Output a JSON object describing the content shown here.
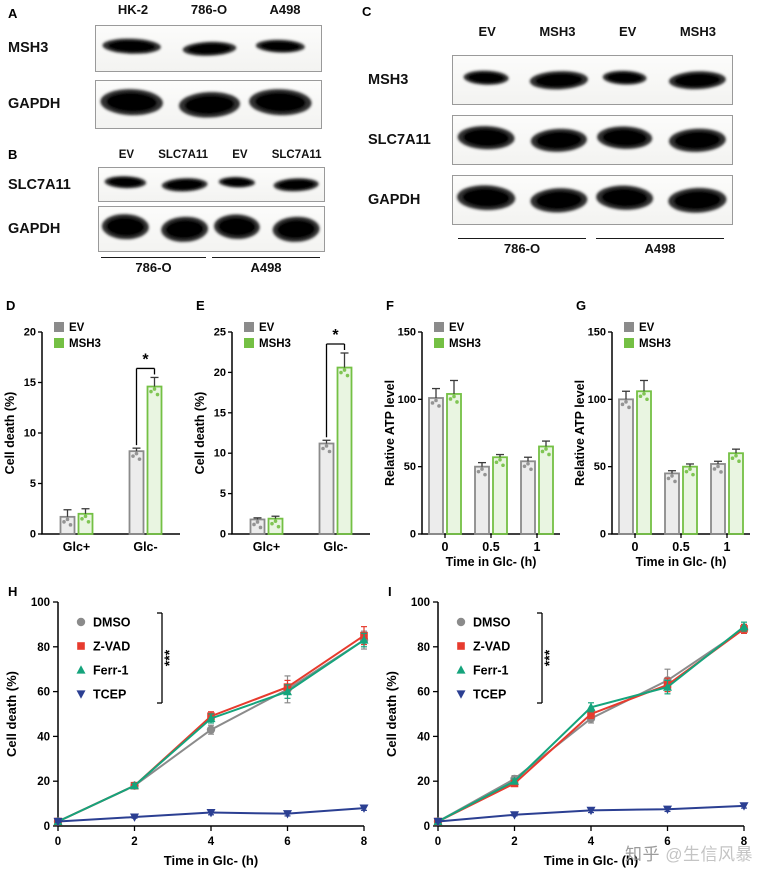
{
  "watermark": {
    "site": "知乎 ",
    "handle": "@生信风暴"
  },
  "panels": {
    "A": {
      "label": "A",
      "lanes": [
        "HK-2",
        "786-O",
        "A498"
      ],
      "blot_rows": [
        {
          "name": "MSH3",
          "bands": [
            0.85,
            0.68,
            0.52
          ],
          "band_h": 0.19
        },
        {
          "name": "GAPDH",
          "bands": [
            1,
            0.95,
            1
          ],
          "band_h": 0.29
        }
      ]
    },
    "B": {
      "label": "B",
      "lanes": [
        "EV",
        "SLC7A11",
        "EV",
        "SLC7A11"
      ],
      "groups": [
        "786-O",
        "A498"
      ],
      "blot_rows": [
        {
          "name": "SLC7A11",
          "bands": [
            0.75,
            0.95,
            0.5,
            0.92
          ],
          "band_h": 0.22
        },
        {
          "name": "GAPDH",
          "bands": [
            1,
            1,
            0.95,
            1
          ],
          "band_h": 0.3
        }
      ]
    },
    "C": {
      "label": "C",
      "lanes": [
        "EV",
        "MSH3",
        "EV",
        "MSH3"
      ],
      "groups": [
        "786-O",
        "A498"
      ],
      "blot_rows": [
        {
          "name": "MSH3",
          "bands": [
            0.5,
            1,
            0.45,
            0.95
          ],
          "band_h": 0.2
        },
        {
          "name": "SLC7A11",
          "bands": [
            0.95,
            0.92,
            0.88,
            0.95
          ],
          "band_h": 0.26
        },
        {
          "name": "GAPDH",
          "bands": [
            1,
            0.95,
            0.95,
            1
          ],
          "band_h": 0.27
        }
      ]
    },
    "D": {
      "label": "D"
    },
    "E": {
      "label": "E"
    },
    "F": {
      "label": "F"
    },
    "G": {
      "label": "G"
    },
    "H": {
      "label": "H"
    },
    "I": {
      "label": "I"
    }
  },
  "chart_data": [
    {
      "id": "D",
      "type": "bar",
      "categories": [
        "Glc+",
        "Glc-"
      ],
      "series": [
        {
          "name": "EV",
          "color": "#8b8b8b",
          "values": [
            1.7,
            8.2
          ],
          "errors": [
            0.7,
            0.3
          ]
        },
        {
          "name": "MSH3",
          "color": "#74c044",
          "values": [
            2.0,
            14.6
          ],
          "errors": [
            0.5,
            0.9
          ]
        }
      ],
      "ylabel": "Cell death (%)",
      "xlabel": "",
      "ylim": [
        0,
        20
      ],
      "yticks": [
        0,
        5,
        10,
        15,
        20
      ],
      "legend_position": "top-left",
      "significance": {
        "symbol": "*",
        "category": "Glc-"
      }
    },
    {
      "id": "E",
      "type": "bar",
      "categories": [
        "Glc+",
        "Glc-"
      ],
      "series": [
        {
          "name": "EV",
          "color": "#8b8b8b",
          "values": [
            1.8,
            11.2
          ],
          "errors": [
            0.2,
            0.4
          ]
        },
        {
          "name": "MSH3",
          "color": "#74c044",
          "values": [
            1.9,
            20.6
          ],
          "errors": [
            0.3,
            1.8
          ]
        }
      ],
      "ylabel": "Cell death (%)",
      "xlabel": "",
      "ylim": [
        0,
        25
      ],
      "yticks": [
        0,
        5,
        10,
        15,
        20,
        25
      ],
      "legend_position": "top-left",
      "significance": {
        "symbol": "*",
        "category": "Glc-"
      }
    },
    {
      "id": "F",
      "type": "bar",
      "categories": [
        "0",
        "0.5",
        "1"
      ],
      "series": [
        {
          "name": "EV",
          "color": "#8b8b8b",
          "values": [
            101,
            50,
            54
          ],
          "errors": [
            7,
            3,
            3
          ]
        },
        {
          "name": "MSH3",
          "color": "#74c044",
          "values": [
            104,
            57,
            65
          ],
          "errors": [
            10,
            2,
            4
          ]
        }
      ],
      "ylabel": "Relative ATP level",
      "xlabel": "Time in Glc- (h)",
      "ylim": [
        0,
        150
      ],
      "yticks": [
        0,
        50,
        100,
        150
      ],
      "legend_position": "top-left"
    },
    {
      "id": "G",
      "type": "bar",
      "categories": [
        "0",
        "0.5",
        "1"
      ],
      "series": [
        {
          "name": "EV",
          "color": "#8b8b8b",
          "values": [
            100,
            45,
            52
          ],
          "errors": [
            6,
            2,
            2
          ]
        },
        {
          "name": "MSH3",
          "color": "#74c044",
          "values": [
            106,
            50,
            60
          ],
          "errors": [
            8,
            2,
            3
          ]
        }
      ],
      "ylabel": "Relative ATP level",
      "xlabel": "Time in Glc- (h)",
      "ylim": [
        0,
        150
      ],
      "yticks": [
        0,
        50,
        100,
        150
      ],
      "legend_position": "top-left"
    },
    {
      "id": "H",
      "type": "line",
      "x": [
        0,
        2,
        4,
        6,
        8
      ],
      "xticks": [
        0,
        2,
        4,
        6,
        8
      ],
      "series": [
        {
          "name": "DMSO",
          "color": "#8b8b8b",
          "marker": "circle",
          "values": [
            2,
            18,
            43,
            61,
            83
          ],
          "errors": [
            0.5,
            1,
            2,
            6,
            4
          ]
        },
        {
          "name": "Z-VAD",
          "color": "#e73b2e",
          "marker": "square",
          "values": [
            2,
            18,
            49,
            62,
            85
          ],
          "errors": [
            0.5,
            1,
            2,
            3,
            4
          ]
        },
        {
          "name": "Ferr-1",
          "color": "#15a47c",
          "marker": "triangle-up",
          "values": [
            2,
            18,
            48,
            60,
            83
          ],
          "errors": [
            0.5,
            1,
            2,
            3,
            3
          ]
        },
        {
          "name": "TCEP",
          "color": "#2b3f92",
          "marker": "triangle-down",
          "values": [
            2,
            4,
            6,
            5.5,
            8
          ],
          "errors": [
            0.3,
            0.5,
            1,
            1,
            1
          ]
        }
      ],
      "ylabel": "Cell death (%)",
      "xlabel": "Time in Glc- (h)",
      "ylim": [
        0,
        100
      ],
      "yticks": [
        0,
        20,
        40,
        60,
        80,
        100
      ],
      "legend_position": "top-left",
      "significance": "***"
    },
    {
      "id": "I",
      "type": "line",
      "x": [
        0,
        2,
        4,
        6,
        8
      ],
      "xticks": [
        0,
        2,
        4,
        6,
        8
      ],
      "series": [
        {
          "name": "DMSO",
          "color": "#8b8b8b",
          "marker": "circle",
          "values": [
            2,
            21,
            48,
            65,
            88
          ],
          "errors": [
            0.5,
            1.5,
            2,
            5,
            2
          ]
        },
        {
          "name": "Z-VAD",
          "color": "#e73b2e",
          "marker": "square",
          "values": [
            2,
            19,
            50,
            63,
            88
          ],
          "errors": [
            0.5,
            1,
            2,
            3,
            2
          ]
        },
        {
          "name": "Ferr-1",
          "color": "#15a47c",
          "marker": "triangle-up",
          "values": [
            2,
            20,
            53,
            62,
            89
          ],
          "errors": [
            0.5,
            1,
            2,
            3,
            2
          ]
        },
        {
          "name": "TCEP",
          "color": "#2b3f92",
          "marker": "triangle-down",
          "values": [
            2,
            5,
            7,
            7.5,
            9
          ],
          "errors": [
            0.3,
            0.5,
            1,
            1,
            1
          ]
        }
      ],
      "ylabel": "Cell death (%)",
      "xlabel": "Time in Glc- (h)",
      "ylim": [
        0,
        100
      ],
      "yticks": [
        0,
        20,
        40,
        60,
        80,
        100
      ],
      "legend_position": "top-left",
      "significance": "***"
    }
  ]
}
